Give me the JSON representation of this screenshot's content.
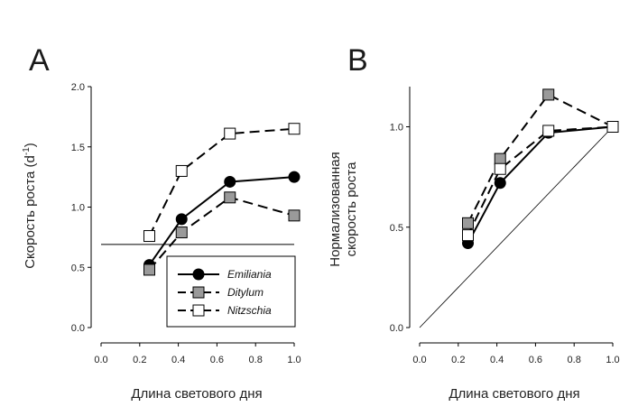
{
  "chart_data": [
    {
      "panel_label": "A",
      "type": "line",
      "xlabel": "Длина светового дня",
      "ylabel": "Скорость роста (d",
      "ylabel_superscript": "-1",
      "ylabel_close": ")",
      "xlim": [
        0.0,
        1.0
      ],
      "ylim": [
        0.0,
        2.0
      ],
      "x_ticks": [
        "0.0",
        "0.2",
        "0.4",
        "0.6",
        "0.8",
        "1.0"
      ],
      "y_ticks": [
        "0.0",
        "0.5",
        "1.0",
        "1.5",
        "2.0"
      ],
      "reference_line": {
        "type": "horizontal",
        "y": 0.69
      },
      "legend_position": "bottom-right",
      "series": [
        {
          "name": "Emiliania",
          "marker": "filled-circle",
          "color": "#000000",
          "line": "solid",
          "x": [
            0.25,
            0.417,
            0.667,
            1.0
          ],
          "y": [
            0.52,
            0.9,
            1.21,
            1.25
          ]
        },
        {
          "name": "Ditylum",
          "marker": "gray-square",
          "color": "#9a9a9a",
          "line": "dashed",
          "x": [
            0.25,
            0.417,
            0.667,
            1.0
          ],
          "y": [
            0.48,
            0.79,
            1.08,
            0.93
          ]
        },
        {
          "name": "Nitzschia",
          "marker": "open-square",
          "color": "#ffffff",
          "line": "dashed",
          "x": [
            0.25,
            0.417,
            0.667,
            1.0
          ],
          "y": [
            0.76,
            1.3,
            1.61,
            1.65
          ]
        }
      ]
    },
    {
      "panel_label": "B",
      "type": "line",
      "xlabel": "Длина светового дня",
      "ylabel_line1": "Нормализованная",
      "ylabel_line2": "скорость роста",
      "xlim": [
        0.0,
        1.0
      ],
      "ylim": [
        0.0,
        1.2
      ],
      "x_ticks": [
        "0.0",
        "0.2",
        "0.4",
        "0.6",
        "0.8",
        "1.0"
      ],
      "y_ticks": [
        "0.0",
        "0.5",
        "1.0"
      ],
      "reference_line": {
        "type": "diagonal",
        "from": [
          0.0,
          0.0
        ],
        "to": [
          1.0,
          1.0
        ]
      },
      "series": [
        {
          "name": "Emiliania",
          "marker": "filled-circle",
          "color": "#000000",
          "line": "solid",
          "x": [
            0.25,
            0.417,
            0.667,
            1.0
          ],
          "y": [
            0.42,
            0.72,
            0.97,
            1.0
          ]
        },
        {
          "name": "Ditylum",
          "marker": "gray-square",
          "color": "#9a9a9a",
          "line": "dashed",
          "x": [
            0.25,
            0.417,
            0.667,
            1.0
          ],
          "y": [
            0.52,
            0.84,
            1.16,
            1.0
          ]
        },
        {
          "name": "Nitzschia",
          "marker": "open-square",
          "color": "#ffffff",
          "line": "dashed",
          "x": [
            0.25,
            0.417,
            0.667,
            1.0
          ],
          "y": [
            0.46,
            0.79,
            0.98,
            1.0
          ]
        }
      ]
    }
  ]
}
